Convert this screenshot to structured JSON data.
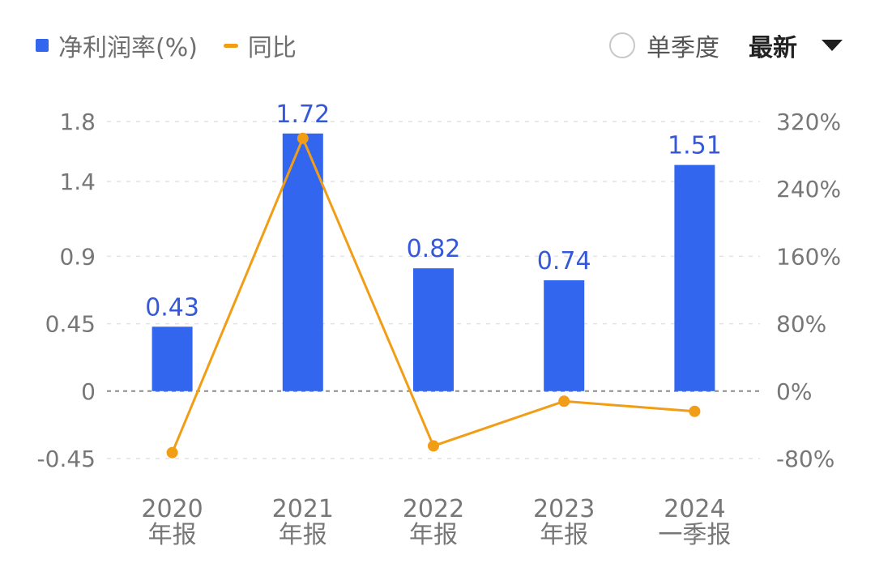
{
  "legend": {
    "bar_label": "净利润率(%)",
    "line_label": "同比"
  },
  "controls": {
    "single_quarter_label": "单季度",
    "sort_label": "最新"
  },
  "colors": {
    "bar": "#3366ee",
    "line": "#f29d16",
    "bar_label": "#3558d8"
  },
  "chart_data": {
    "type": "bar",
    "categories": [
      [
        "2020",
        "年报"
      ],
      [
        "2021",
        "年报"
      ],
      [
        "2022",
        "年报"
      ],
      [
        "2023",
        "年报"
      ],
      [
        "2024",
        "一季报"
      ]
    ],
    "series": [
      {
        "name": "净利润率(%)",
        "type": "bar",
        "axis": "left",
        "values": [
          0.43,
          1.72,
          0.82,
          0.74,
          1.51
        ],
        "labels": [
          "0.43",
          "1.72",
          "0.82",
          "0.74",
          "1.51"
        ]
      },
      {
        "name": "同比",
        "type": "line",
        "axis": "right",
        "values": [
          -73,
          300,
          -65,
          -12,
          -24
        ]
      }
    ],
    "left_axis": {
      "ticks": [
        1.8,
        1.4,
        0.9,
        0.45,
        0,
        -0.45
      ],
      "tick_labels": [
        "1.8",
        "1.4",
        "0.9",
        "0.45",
        "0",
        "-0.45"
      ],
      "range": [
        -0.45,
        1.8
      ]
    },
    "right_axis": {
      "ticks": [
        320,
        240,
        160,
        80,
        0,
        -80
      ],
      "tick_labels": [
        "320%",
        "240%",
        "160%",
        "80%",
        "0%",
        "-80%"
      ],
      "range": [
        -80,
        320
      ]
    },
    "grid": true
  }
}
